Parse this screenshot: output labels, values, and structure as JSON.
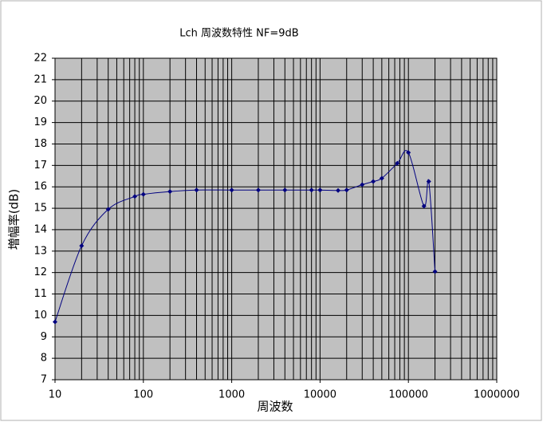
{
  "chart_data": {
    "type": "line",
    "title": "Lch 周波数特性 NF=9dB",
    "xlabel": "周波数",
    "ylabel": "増幅率(dB)",
    "xscale": "log",
    "x": [
      10,
      20,
      40,
      80,
      100,
      200,
      400,
      1000,
      2000,
      4000,
      8000,
      10000,
      16000,
      20000,
      30000,
      40000,
      50000,
      75000,
      100000,
      150000,
      170000,
      200000
    ],
    "series": [
      {
        "color": "#000080",
        "values": [
          9.7,
          13.25,
          14.95,
          15.55,
          15.65,
          15.78,
          15.85,
          15.85,
          15.85,
          15.85,
          15.85,
          15.85,
          15.83,
          15.85,
          16.1,
          16.25,
          16.4,
          17.1,
          17.6,
          15.1,
          16.25,
          12.05
        ]
      }
    ],
    "xlim": [
      10,
      1000000
    ],
    "xticks": [
      10,
      100,
      1000,
      10000,
      100000,
      1000000
    ],
    "ylim": [
      7,
      22
    ],
    "yticks": [
      7,
      8,
      9,
      10,
      11,
      12,
      13,
      14,
      15,
      16,
      17,
      18,
      19,
      20,
      21,
      22
    ],
    "grid": true,
    "plot_background": "#c0c0c0"
  }
}
